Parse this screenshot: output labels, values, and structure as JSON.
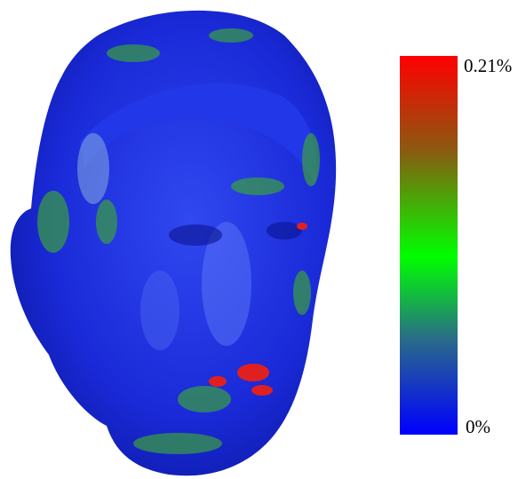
{
  "colorbar": {
    "max_label": "0.21%",
    "min_label": "0%"
  }
}
